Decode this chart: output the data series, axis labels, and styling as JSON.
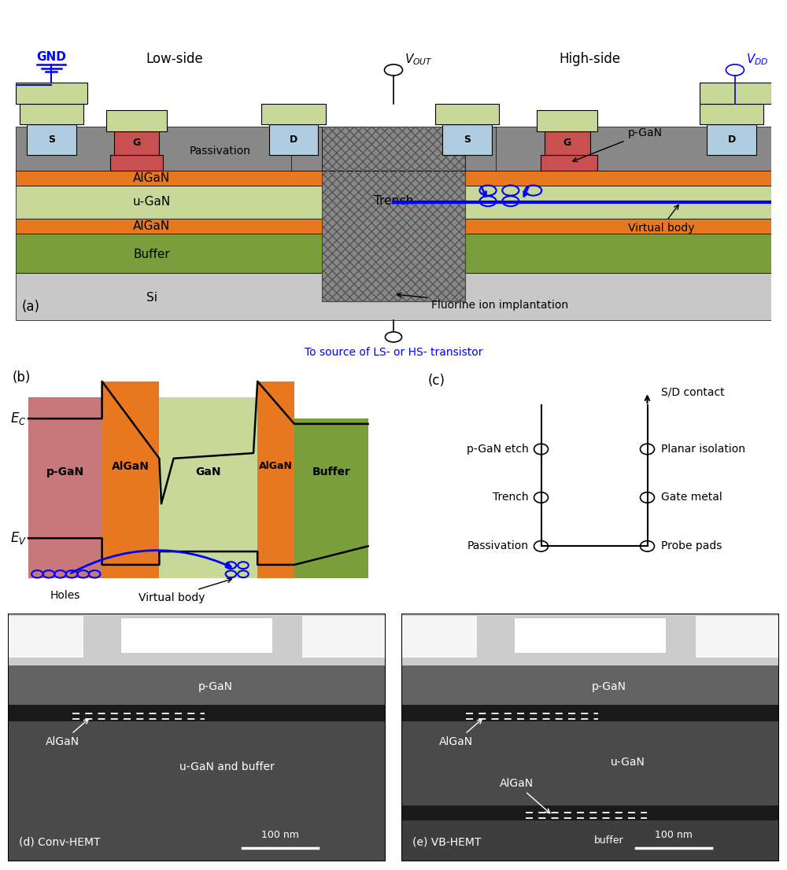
{
  "fig_width": 10.0,
  "fig_height": 11.06,
  "bg_color": "#ffffff",
  "panel_a": {
    "label": "(a)",
    "si_color": "#c8c8c8",
    "buffer_color": "#7a9e3c",
    "algan_color": "#e87820",
    "ugan_color": "#c8d898",
    "passivation_color": "#888888",
    "contact_color": "#b0cce0",
    "gate_color": "#c85050",
    "low_side_label": "Low-side",
    "high_side_label": "High-side",
    "gnd_label": "GND",
    "algan_label": "AlGaN",
    "ugan_label": "u-GaN",
    "buffer_label": "Buffer",
    "si_label": "Si",
    "trench_label": "Trench",
    "passivation_label": "Passivation",
    "pgan_label": "p-GaN",
    "fluorine_label": "Fluorine ion implantation",
    "virtual_body_label": "Virtual body",
    "source_label": "To source of LS- or HS- transistor",
    "s_label": "S",
    "g_label": "G",
    "d_label": "D"
  },
  "panel_b": {
    "label": "(b)",
    "pgan_color": "#c87878",
    "algan_color": "#e87820",
    "gan_color": "#c8d898",
    "buffer_color": "#7a9e3c",
    "ec_label": "$E_C$",
    "ev_label": "$E_V$",
    "holes_label": "Holes",
    "virtual_body_label": "Virtual body"
  },
  "panel_c": {
    "label": "(c)",
    "left_items": [
      "p-GaN etch",
      "Trench",
      "Passivation"
    ],
    "right_items_with_circle": [
      "Planar isolation",
      "Gate metal",
      "Probe pads"
    ],
    "top_item": "S/D contact"
  },
  "panel_d": {
    "label": "(d) Conv-HEMT",
    "scale_label": "100 nm",
    "pgan_label": "p-GaN",
    "algan_label": "AlGaN",
    "layer_label": "u-GaN and buffer"
  },
  "panel_e": {
    "label": "(e) VB-HEMT",
    "scale_label": "100 nm",
    "pgan_label": "p-GaN",
    "algan_label1": "AlGaN",
    "algan_label2": "AlGaN",
    "ugan_label": "u-GaN",
    "buffer_label": "buffer"
  }
}
